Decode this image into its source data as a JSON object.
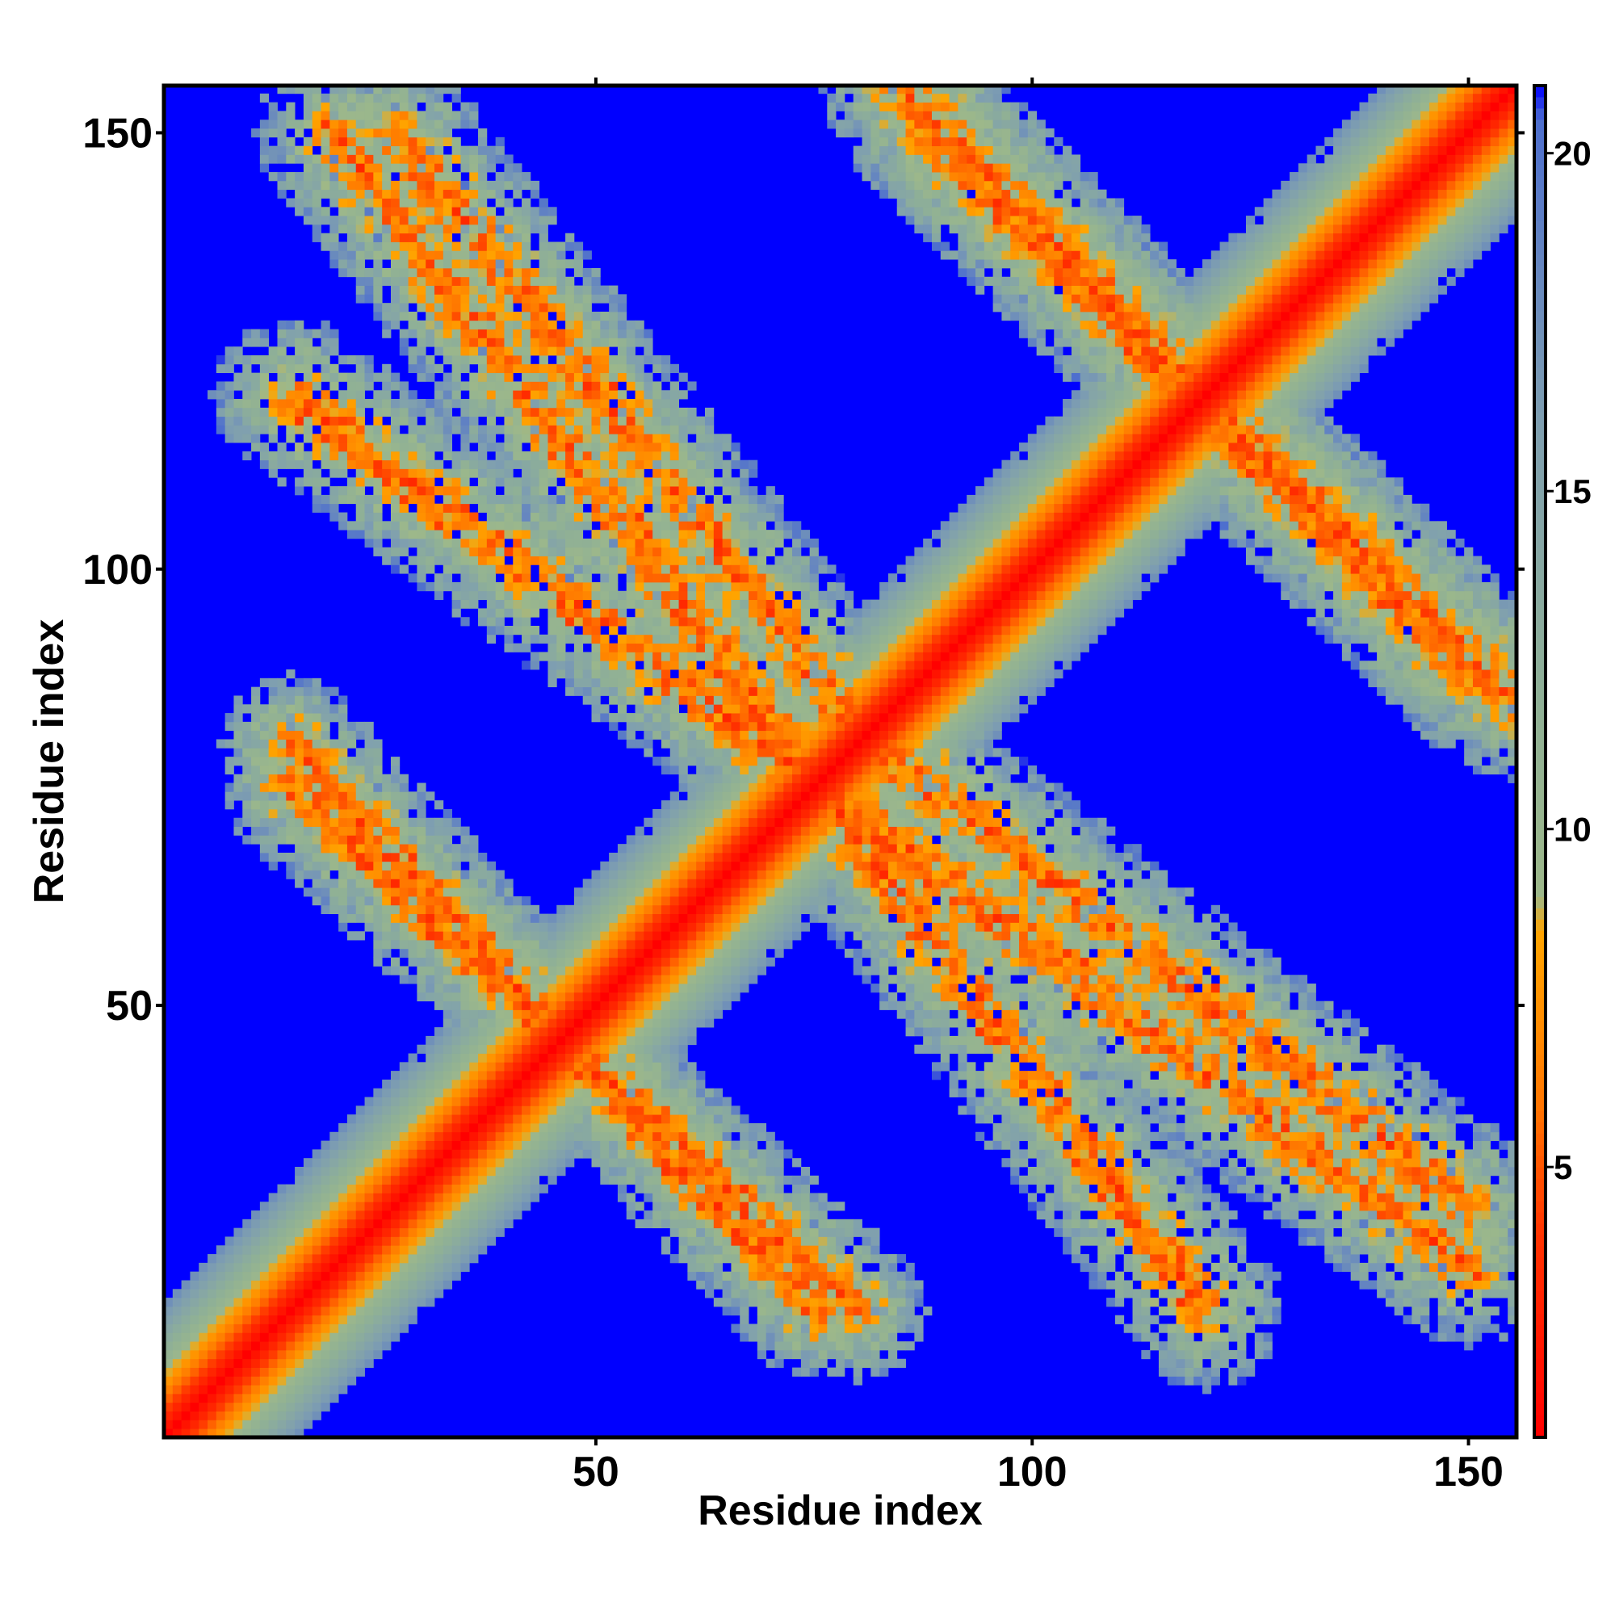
{
  "chart_data": {
    "type": "heatmap",
    "title": "",
    "xlabel": "Residue index",
    "ylabel": "Residue index",
    "n_residues": 155,
    "xlim": [
      1,
      155
    ],
    "ylim": [
      1,
      155
    ],
    "x_ticks": [
      50,
      100,
      150
    ],
    "y_ticks": [
      50,
      100,
      150
    ],
    "x_tick_labels": [
      "50",
      "100",
      "150"
    ],
    "y_tick_labels": [
      "50",
      "100",
      "150"
    ],
    "colorbar": {
      "range": [
        1,
        21
      ],
      "ticks": [
        5,
        10,
        15,
        20
      ],
      "tick_labels": [
        "5",
        "10",
        "15",
        "20"
      ],
      "colors": [
        {
          "value": 1,
          "color": "#ff0000"
        },
        {
          "value": 4,
          "color": "#ff3300"
        },
        {
          "value": 6,
          "color": "#ff7700"
        },
        {
          "value": 8.5,
          "color": "#ffa500"
        },
        {
          "value": 9,
          "color": "#9db88a"
        },
        {
          "value": 12,
          "color": "#8fb096"
        },
        {
          "value": 16,
          "color": "#7f9fb0"
        },
        {
          "value": 20.5,
          "color": "#4e6fce"
        },
        {
          "value": 21,
          "color": "#0000ff"
        }
      ]
    },
    "background_value": 21,
    "background_color": "#0000ff",
    "contact_bands": [
      {
        "name": "main diagonal",
        "from": [
          1,
          1
        ],
        "to": [
          155,
          155
        ],
        "core_width": 4,
        "halo_width": 11
      },
      {
        "name": "antiparallel pair A",
        "from": [
          20,
          150
        ],
        "to": [
          120,
          15
        ],
        "core_width": 2,
        "halo_width": 9
      },
      {
        "name": "antiparallel pair B",
        "from": [
          88,
          150
        ],
        "to": [
          155,
          85
        ],
        "core_width": 2,
        "halo_width": 9
      },
      {
        "name": "antiparallel pair C",
        "from": [
          15,
          75
        ],
        "to": [
          80,
          15
        ],
        "core_width": 2,
        "halo_width": 8
      },
      {
        "name": "antiparallel pair D",
        "from": [
          82,
          80
        ],
        "to": [
          150,
          27
        ],
        "core_width": 2,
        "halo_width": 9
      }
    ]
  }
}
